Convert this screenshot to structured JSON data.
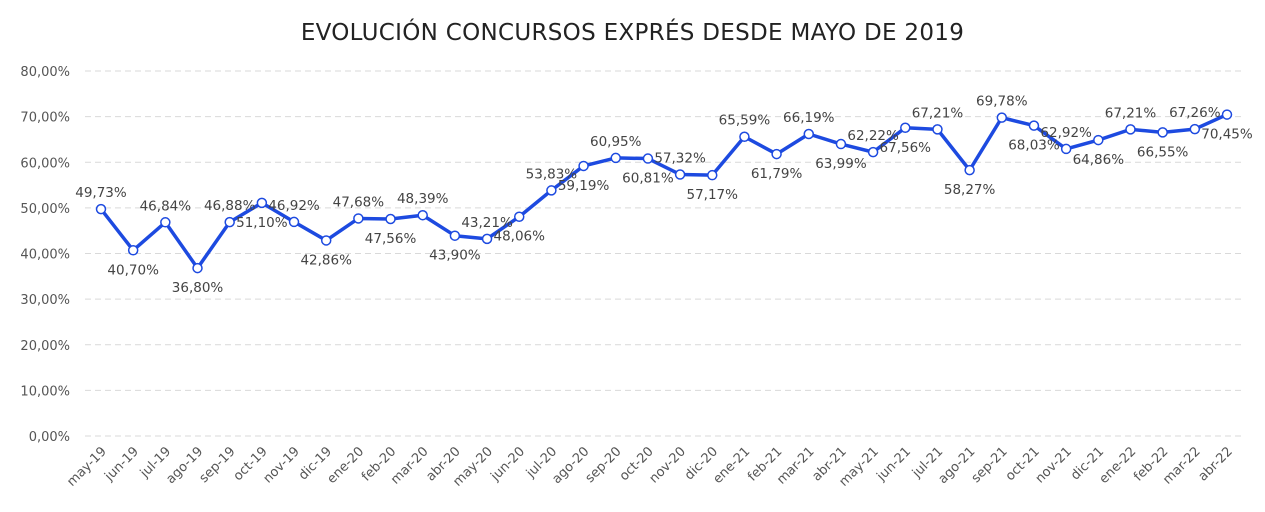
{
  "chart_data": {
    "type": "line",
    "title": "EVOLUCIÓN CONCURSOS EXPRÉS DESDE MAYO DE 2019",
    "xlabel": "",
    "ylabel": "",
    "ylim": [
      0,
      80
    ],
    "yticks": [
      "0,00%",
      "10,00%",
      "20,00%",
      "30,00%",
      "40,00%",
      "50,00%",
      "60,00%",
      "70,00%",
      "80,00%"
    ],
    "grid": true,
    "legend": "none",
    "color": "#1d4ae0",
    "categories": [
      "may-19",
      "jun-19",
      "jul-19",
      "ago-19",
      "sep-19",
      "oct-19",
      "nov-19",
      "dic-19",
      "ene-20",
      "feb-20",
      "mar-20",
      "abr-20",
      "may-20",
      "jun-20",
      "jul-20",
      "ago-20",
      "sep-20",
      "oct-20",
      "nov-20",
      "dic-20",
      "ene-21",
      "feb-21",
      "mar-21",
      "abr-21",
      "may-21",
      "jun-21",
      "jul-21",
      "ago-21",
      "sep-21",
      "oct-21",
      "nov-21",
      "dic-21",
      "ene-22",
      "feb-22",
      "mar-22",
      "abr-22"
    ],
    "values": [
      49.73,
      40.7,
      46.84,
      36.8,
      46.88,
      51.1,
      46.92,
      42.86,
      47.68,
      47.56,
      48.39,
      43.9,
      43.21,
      48.06,
      53.83,
      59.19,
      60.95,
      60.81,
      57.32,
      57.17,
      65.59,
      61.79,
      66.19,
      63.99,
      62.22,
      67.56,
      67.21,
      58.27,
      69.78,
      68.03,
      62.92,
      64.86,
      67.21,
      66.55,
      67.26,
      70.45
    ],
    "data_labels": [
      "49,73%",
      "40,70%",
      "46,84%",
      "36,80%",
      "46,88%",
      "51,10%",
      "46,92%",
      "42,86%",
      "47,68%",
      "47,56%",
      "48,39%",
      "43,90%",
      "43,21%",
      "48,06%",
      "53,83%",
      "59,19%",
      "60,95%",
      "60,81%",
      "57,32%",
      "57,17%",
      "65,59%",
      "61,79%",
      "66,19%",
      "63,99%",
      "62,22%",
      "67,56%",
      "67,21%",
      "58,27%",
      "69,78%",
      "68,03%",
      "62,92%",
      "64,86%",
      "67,21%",
      "66,55%",
      "67,26%",
      "70,45%"
    ]
  }
}
